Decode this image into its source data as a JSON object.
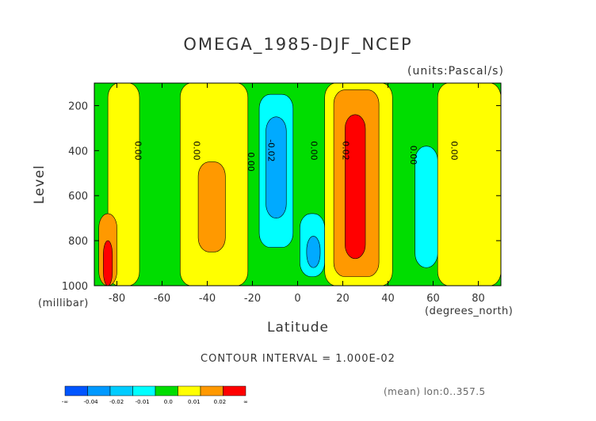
{
  "chart_data": {
    "type": "heatmap",
    "title": "OMEGA_1985-DJF_NCEP",
    "units": "(units:Pascal/s)",
    "xlabel": "Latitude",
    "x_units": "(degrees_north)",
    "ylabel": "Level",
    "y_units": "(millibar)",
    "xlim": [
      -90,
      90
    ],
    "ylim": [
      1000,
      100
    ],
    "x_ticks": [
      "-80",
      "-60",
      "-40",
      "-20",
      "0",
      "20",
      "40",
      "60",
      "80"
    ],
    "x_tick_values": [
      -80,
      -60,
      -40,
      -20,
      0,
      20,
      40,
      60,
      80
    ],
    "y_ticks": [
      "200",
      "400",
      "600",
      "800",
      "1000"
    ],
    "y_tick_values": [
      200,
      400,
      600,
      800,
      1000
    ],
    "contour_labels": [
      {
        "text": "0.00",
        "lat": -72,
        "lev": 400
      },
      {
        "text": "0.00",
        "lat": -46,
        "lev": 400
      },
      {
        "text": "0.00",
        "lat": -22,
        "lev": 450
      },
      {
        "text": "-0.02",
        "lat": -13,
        "lev": 400
      },
      {
        "text": "0.00",
        "lat": 6,
        "lev": 400
      },
      {
        "text": "0.02",
        "lat": 20,
        "lev": 400
      },
      {
        "text": "0.00",
        "lat": 50,
        "lev": 420
      },
      {
        "text": "0.00",
        "lat": 68,
        "lev": 400
      }
    ],
    "regions": [
      {
        "class": "0.0 to 0.01",
        "color": "#ffff00",
        "lat": [
          -84,
          -70
        ],
        "lev": [
          100,
          1000
        ]
      },
      {
        "class": "0.01 to 0.02",
        "color": "#ff9900",
        "lat": [
          -88,
          -80
        ],
        "lev": [
          680,
          1000
        ]
      },
      {
        "class": ">0.02",
        "color": "#ff0000",
        "lat": [
          -86,
          -82
        ],
        "lev": [
          800,
          1000
        ]
      },
      {
        "class": "0.0 to 0.01",
        "color": "#ffff00",
        "lat": [
          -52,
          -22
        ],
        "lev": [
          100,
          1000
        ]
      },
      {
        "class": "0.01 to 0.02",
        "color": "#ff9900",
        "lat": [
          -44,
          -32
        ],
        "lev": [
          450,
          850
        ]
      },
      {
        "class": "-0.01 to 0.0",
        "color": "#00ffff",
        "lat": [
          -17,
          -2
        ],
        "lev": [
          150,
          830
        ]
      },
      {
        "class": "-0.02 to -0.01",
        "color": "#00aaff",
        "lat": [
          -14,
          -5
        ],
        "lev": [
          250,
          700
        ]
      },
      {
        "class": "-0.01 to 0.0",
        "color": "#00ffff",
        "lat": [
          1,
          12
        ],
        "lev": [
          680,
          960
        ]
      },
      {
        "class": "-0.02 to -0.01",
        "color": "#00aaff",
        "lat": [
          4,
          10
        ],
        "lev": [
          780,
          920
        ]
      },
      {
        "class": "0.0 to 0.01",
        "color": "#ffff00",
        "lat": [
          12,
          42
        ],
        "lev": [
          100,
          1000
        ]
      },
      {
        "class": "0.01 to 0.02",
        "color": "#ff9900",
        "lat": [
          16,
          36
        ],
        "lev": [
          130,
          960
        ]
      },
      {
        "class": ">0.02",
        "color": "#ff0000",
        "lat": [
          21,
          30
        ],
        "lev": [
          240,
          880
        ]
      },
      {
        "class": "0.0 to 0.01",
        "color": "#ffff00",
        "lat": [
          62,
          90
        ],
        "lev": [
          100,
          1000
        ]
      },
      {
        "class": "-0.01 to 0.0",
        "color": "#00ffff",
        "lat": [
          52,
          62
        ],
        "lev": [
          380,
          920
        ]
      }
    ],
    "colorbar": {
      "colors": [
        "#0055ff",
        "#0099ff",
        "#00ccff",
        "#00ffff",
        "#00dd00",
        "#ffff00",
        "#ff9900",
        "#ff0000"
      ],
      "labels": [
        "-∞",
        "-0.04",
        "-0.02",
        "-0.01",
        "0.0",
        "0.01",
        "0.02",
        "∞"
      ]
    }
  },
  "contour_interval": "CONTOUR INTERVAL = 1.000E-02",
  "mean_note": "(mean) lon:0..357.5"
}
